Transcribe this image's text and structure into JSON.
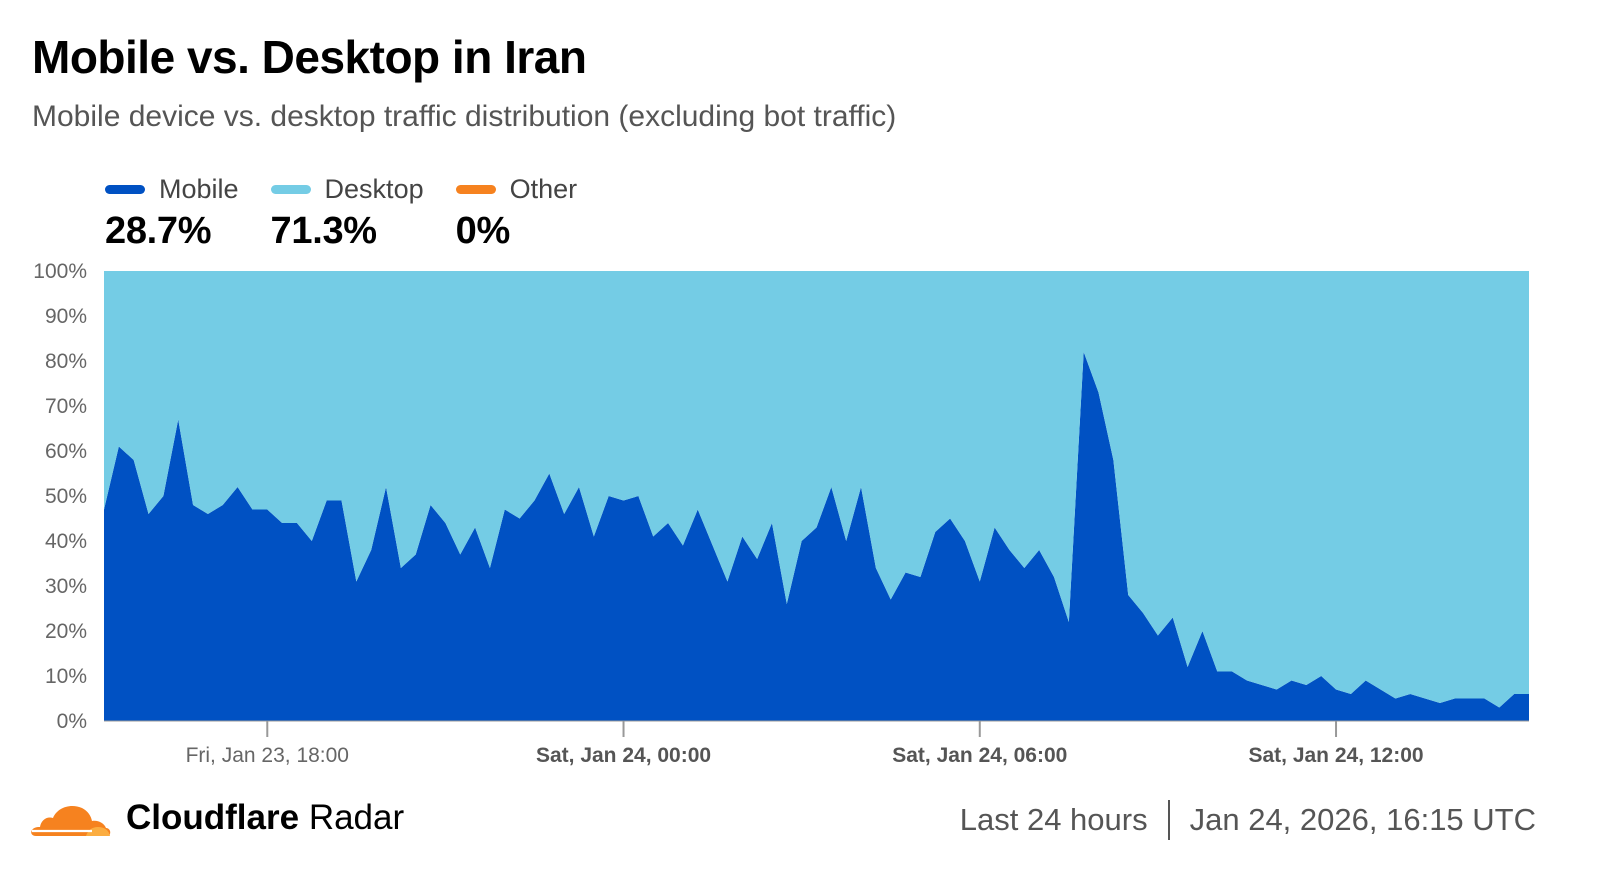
{
  "header": {
    "title": "Mobile vs. Desktop in Iran",
    "subtitle": "Mobile device vs. desktop traffic distribution (excluding bot traffic)"
  },
  "legend": [
    {
      "name": "Mobile",
      "value": "28.7%",
      "color": "#0051c3"
    },
    {
      "name": "Desktop",
      "value": "71.3%",
      "color": "#74cce5"
    },
    {
      "name": "Other",
      "value": "0%",
      "color": "#f6821f"
    }
  ],
  "footer": {
    "brand_bold": "Cloudflare",
    "brand_light": "Radar",
    "range": "Last 24 hours",
    "timestamp": "Jan 24, 2026, 16:15 UTC"
  },
  "chart_data": {
    "type": "area",
    "stacked": true,
    "ylim": [
      0,
      100
    ],
    "yticks": [
      "0%",
      "10%",
      "20%",
      "30%",
      "40%",
      "50%",
      "60%",
      "70%",
      "80%",
      "90%",
      "100%"
    ],
    "xticks": [
      {
        "label": "Fri, Jan 23, 18:00",
        "index": 11,
        "bold": false
      },
      {
        "label": "Sat, Jan 24, 00:00",
        "index": 35,
        "bold": true
      },
      {
        "label": "Sat, Jan 24, 06:00",
        "index": 59,
        "bold": true
      },
      {
        "label": "Sat, Jan 24, 12:00",
        "index": 83,
        "bold": true
      }
    ],
    "series": [
      {
        "name": "Mobile",
        "color": "#0051c3",
        "values": [
          47,
          61,
          58,
          46,
          50,
          67,
          48,
          46,
          48,
          52,
          47,
          47,
          44,
          44,
          40,
          49,
          49,
          31,
          38,
          52,
          34,
          37,
          48,
          44,
          37,
          43,
          34,
          47,
          45,
          49,
          55,
          46,
          52,
          41,
          50,
          49,
          50,
          41,
          44,
          39,
          47,
          39,
          31,
          41,
          36,
          44,
          26,
          40,
          43,
          52,
          40,
          52,
          34,
          27,
          33,
          32,
          42,
          45,
          40,
          31,
          43,
          38,
          34,
          38,
          32,
          22,
          82,
          73,
          58,
          28,
          24,
          19,
          23,
          12,
          20,
          11,
          11,
          9,
          8,
          7,
          9,
          8,
          10,
          7,
          6,
          9,
          7,
          5,
          6,
          5,
          4,
          5,
          5,
          5,
          3,
          6,
          6
        ]
      },
      {
        "name": "Desktop",
        "color": "#74cce5",
        "values": [
          53,
          39,
          42,
          54,
          50,
          33,
          52,
          54,
          52,
          48,
          53,
          53,
          56,
          56,
          60,
          51,
          51,
          69,
          62,
          48,
          66,
          63,
          52,
          56,
          63,
          57,
          66,
          53,
          55,
          51,
          45,
          54,
          48,
          59,
          50,
          51,
          50,
          59,
          56,
          61,
          53,
          61,
          69,
          59,
          64,
          56,
          74,
          60,
          57,
          48,
          60,
          48,
          66,
          73,
          67,
          68,
          58,
          55,
          60,
          69,
          57,
          62,
          66,
          62,
          68,
          78,
          18,
          27,
          42,
          72,
          76,
          81,
          77,
          88,
          80,
          89,
          89,
          91,
          92,
          93,
          91,
          92,
          90,
          93,
          94,
          91,
          93,
          95,
          94,
          95,
          96,
          95,
          95,
          95,
          97,
          94,
          94
        ]
      },
      {
        "name": "Other",
        "color": "#f6821f",
        "values": [
          0,
          0,
          0,
          0,
          0,
          0,
          0,
          0,
          0,
          0,
          0,
          0,
          0,
          0,
          0,
          0,
          0,
          0,
          0,
          0,
          0,
          0,
          0,
          0,
          0,
          0,
          0,
          0,
          0,
          0,
          0,
          0,
          0,
          0,
          0,
          0,
          0,
          0,
          0,
          0,
          0,
          0,
          0,
          0,
          0,
          0,
          0,
          0,
          0,
          0,
          0,
          0,
          0,
          0,
          0,
          0,
          0,
          0,
          0,
          0,
          0,
          0,
          0,
          0,
          0,
          0,
          0,
          0,
          0,
          0,
          0,
          0,
          0,
          0,
          0,
          0,
          0,
          0,
          0,
          0,
          0,
          0,
          0,
          0,
          0,
          0,
          0,
          0,
          0,
          0,
          0,
          0,
          0,
          0,
          0,
          0,
          0
        ]
      }
    ]
  }
}
